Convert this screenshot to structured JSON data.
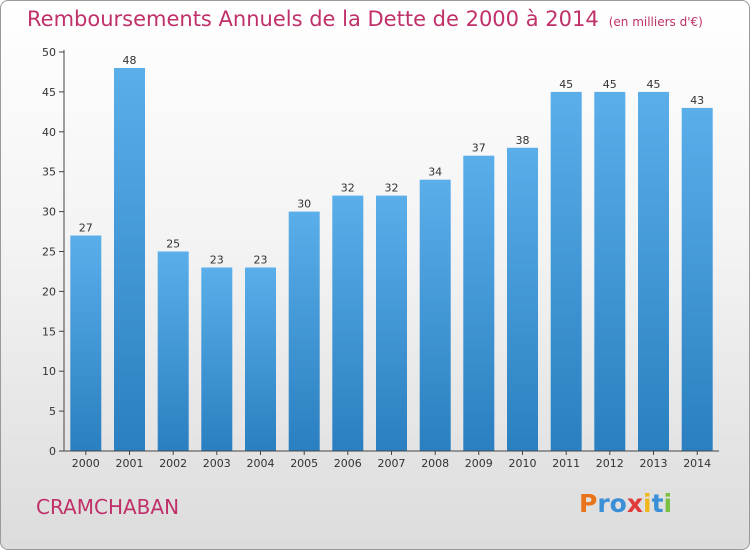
{
  "chart_data": {
    "type": "bar",
    "title": "Remboursements Annuels de la Dette de 2000 à 2014",
    "subtitle": "(en milliers d'€)",
    "categories": [
      "2000",
      "2001",
      "2002",
      "2003",
      "2004",
      "2005",
      "2006",
      "2007",
      "2008",
      "2009",
      "2010",
      "2011",
      "2012",
      "2013",
      "2014"
    ],
    "values": [
      27,
      48,
      25,
      23,
      23,
      30,
      32,
      32,
      34,
      37,
      38,
      45,
      45,
      45,
      43
    ],
    "ylim": [
      0,
      50
    ],
    "yticks": [
      0,
      5,
      10,
      15,
      20,
      25,
      30,
      35,
      40,
      45,
      50
    ],
    "xlabel": "",
    "ylabel": "",
    "grid": false,
    "bar_color_top": "#5aaeea",
    "bar_color_bottom": "#2a7fc0"
  },
  "footer": {
    "city": "CRAMCHABAN",
    "logo_letters": [
      "P",
      "r",
      "o",
      "x",
      "i",
      "t",
      "i"
    ],
    "logo_colors": [
      "#e8731a",
      "#3a8fd6",
      "#3a8fd6",
      "#e03a3a",
      "#f0b81e",
      "#3a8fd6",
      "#7ac142"
    ]
  },
  "colors": {
    "title": "#c0306a",
    "axis": "#444444"
  }
}
